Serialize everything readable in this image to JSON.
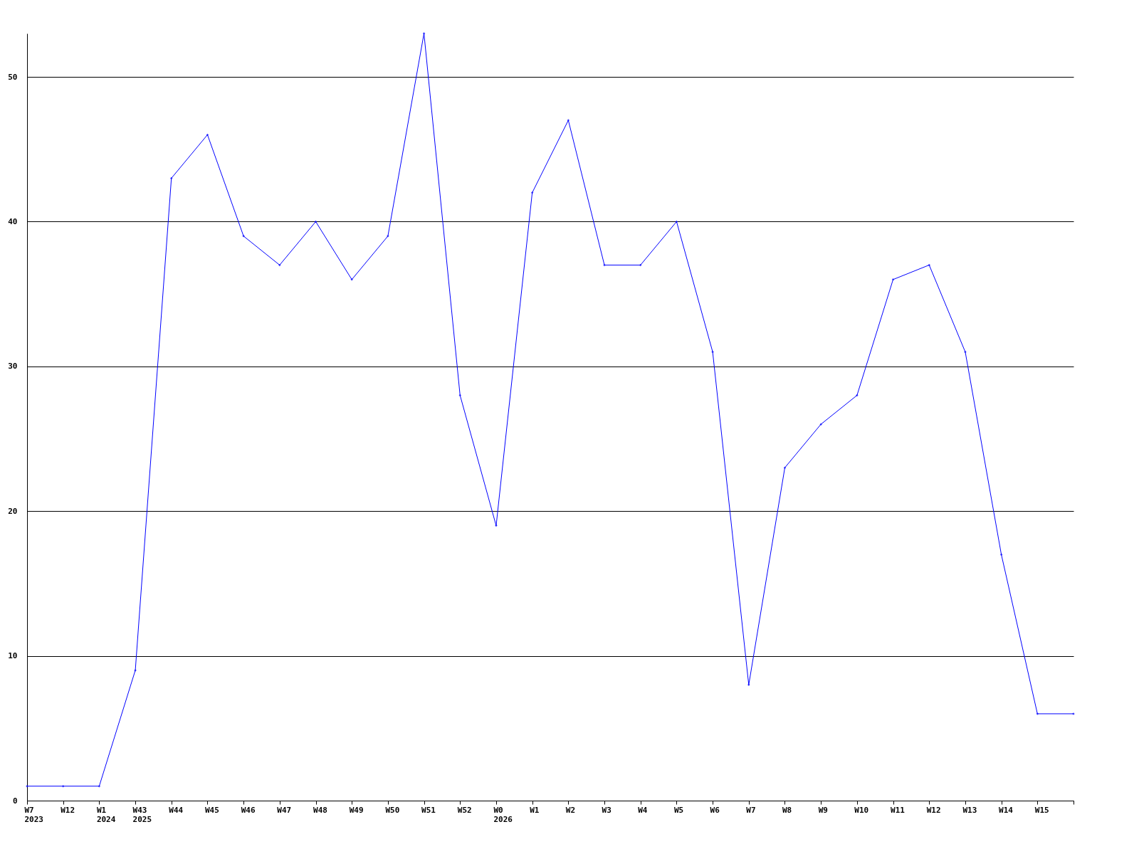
{
  "chart_data": {
    "type": "line",
    "categories": [
      "W7\n2023",
      "W12",
      "W1\n2024",
      "W43\n2025",
      "W44",
      "W45",
      "W46",
      "W47",
      "W48",
      "W49",
      "W50",
      "W51",
      "W52",
      "W0\n2026",
      "W1",
      "W2",
      "W3",
      "W4",
      "W5",
      "W6",
      "W7",
      "W8",
      "W9",
      "W10",
      "W11",
      "W12",
      "W13",
      "W14",
      "W15",
      null
    ],
    "series": [
      {
        "color": "#0000ff",
        "values": [
          1,
          1,
          1,
          9,
          43,
          46,
          39,
          37,
          40,
          36,
          39,
          53,
          28,
          19,
          42,
          47,
          37,
          37,
          40,
          31,
          8,
          23,
          26,
          28,
          36,
          37,
          31,
          17,
          6,
          6
        ]
      }
    ],
    "ylim": [
      0,
      53
    ],
    "yticks": [
      0,
      10,
      20,
      30,
      40,
      50
    ],
    "grid": "y",
    "marker": "diamond",
    "line_style": "solid"
  }
}
